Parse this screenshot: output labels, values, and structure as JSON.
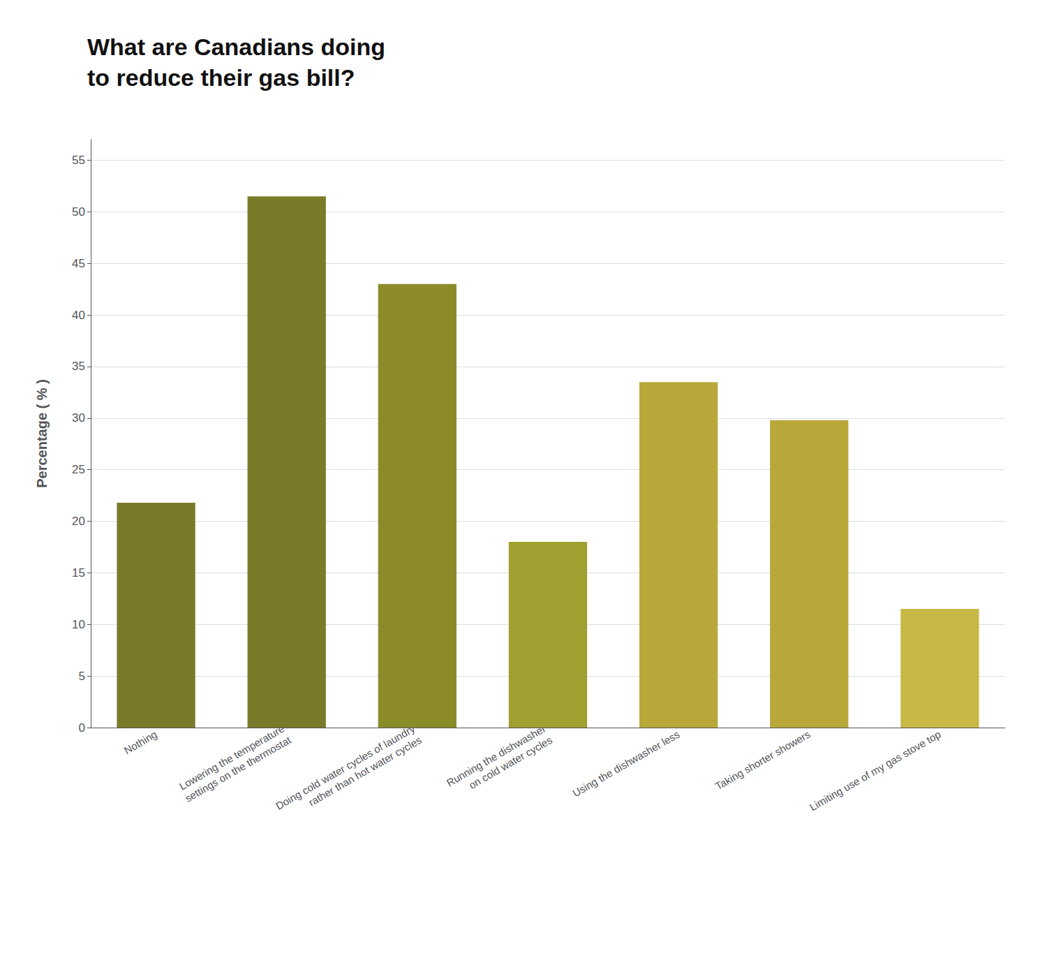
{
  "chart_data": {
    "type": "bar",
    "title": "What are Canadians doing\nto reduce their gas bill?",
    "ylabel": "Percentage ( % )",
    "categories": [
      "Nothing",
      "Lowering the temperature\nsettings on the thermostat",
      "Doing cold water cycles of laundry\nrather than hot water cycles",
      "Running the dishwasher\non cold water cycles",
      "Using the dishwasher less",
      "Taking shorter showers",
      "Limiting use of my gas stove top"
    ],
    "values": [
      21.8,
      51.5,
      43.0,
      18.0,
      33.5,
      29.8,
      11.5
    ],
    "colors": [
      "#7a7a2a",
      "#7a7a2a",
      "#8b8b2a",
      "#a0a030",
      "#b8a83a",
      "#b8a83a",
      "#c8b845"
    ],
    "ylim": [
      0,
      57
    ],
    "yticks": [
      0,
      5,
      10,
      15,
      20,
      25,
      30,
      35,
      40,
      45,
      50,
      55
    ],
    "grid": true
  }
}
